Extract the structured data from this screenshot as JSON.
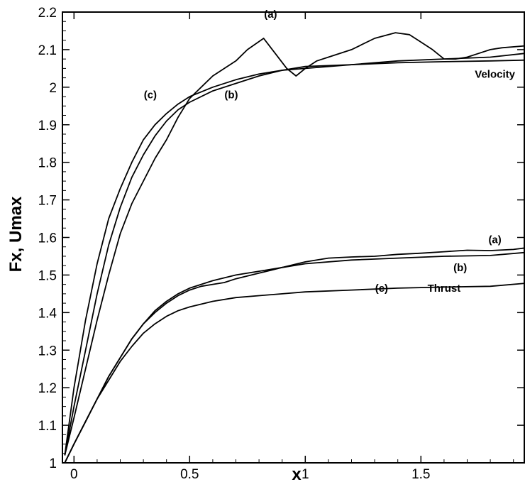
{
  "chart_data": {
    "type": "line",
    "xlabel": "x",
    "ylabel": "Fx, Umax",
    "xlim": [
      -0.05,
      1.95
    ],
    "ylim": [
      1.0,
      2.2
    ],
    "x_ticks": [
      0,
      0.5,
      1,
      1.5
    ],
    "x_tick_labels": [
      "0",
      "0.5",
      "1",
      "1.5"
    ],
    "y_ticks": [
      1.0,
      1.1,
      1.2,
      1.3,
      1.4,
      1.5,
      1.6,
      1.7,
      1.8,
      1.9,
      2.0,
      2.1,
      2.2
    ],
    "y_tick_labels": [
      "1",
      "1.1",
      "1.2",
      "1.3",
      "1.4",
      "1.5",
      "1.6",
      "1.7",
      "1.8",
      "1.9",
      "2",
      "2.1",
      "2.2"
    ],
    "grid": false,
    "series": [
      {
        "group": "Velocity",
        "curve": "(a)",
        "x": [
          -0.04,
          0.0,
          0.05,
          0.1,
          0.15,
          0.2,
          0.25,
          0.3,
          0.35,
          0.4,
          0.45,
          0.5,
          0.55,
          0.6,
          0.65,
          0.7,
          0.75,
          0.82,
          0.87,
          0.92,
          0.96,
          1.0,
          1.05,
          1.1,
          1.2,
          1.3,
          1.39,
          1.45,
          1.5,
          1.55,
          1.6,
          1.65,
          1.7,
          1.75,
          1.8,
          1.85,
          1.95
        ],
        "y": [
          1.02,
          1.12,
          1.25,
          1.38,
          1.5,
          1.61,
          1.69,
          1.75,
          1.81,
          1.86,
          1.92,
          1.97,
          2.0,
          2.03,
          2.05,
          2.07,
          2.1,
          2.13,
          2.09,
          2.05,
          2.03,
          2.05,
          2.07,
          2.08,
          2.1,
          2.13,
          2.145,
          2.14,
          2.12,
          2.1,
          2.075,
          2.075,
          2.08,
          2.09,
          2.1,
          2.105,
          2.11
        ]
      },
      {
        "group": "Velocity",
        "curve": "(b)",
        "x": [
          -0.04,
          0.0,
          0.05,
          0.1,
          0.15,
          0.2,
          0.25,
          0.3,
          0.35,
          0.4,
          0.45,
          0.5,
          0.6,
          0.7,
          0.8,
          0.9,
          1.0,
          1.2,
          1.4,
          1.6,
          1.8,
          1.95
        ],
        "y": [
          1.02,
          1.15,
          1.3,
          1.45,
          1.58,
          1.68,
          1.76,
          1.82,
          1.87,
          1.91,
          1.94,
          1.96,
          1.99,
          2.01,
          2.03,
          2.045,
          2.05,
          2.06,
          2.07,
          2.075,
          2.08,
          2.09
        ]
      },
      {
        "group": "Velocity",
        "curve": "(c)",
        "x": [
          -0.04,
          0.0,
          0.05,
          0.1,
          0.15,
          0.2,
          0.25,
          0.3,
          0.35,
          0.4,
          0.45,
          0.5,
          0.6,
          0.7,
          0.8,
          0.9,
          1.0,
          1.2,
          1.4,
          1.6,
          1.8,
          1.95
        ],
        "y": [
          1.02,
          1.2,
          1.38,
          1.53,
          1.65,
          1.73,
          1.8,
          1.86,
          1.9,
          1.93,
          1.955,
          1.975,
          2.0,
          2.02,
          2.035,
          2.045,
          2.055,
          2.06,
          2.065,
          2.068,
          2.07,
          2.072
        ]
      },
      {
        "group": "Thrust",
        "curve": "(a)",
        "x": [
          -0.04,
          0.0,
          0.05,
          0.1,
          0.15,
          0.2,
          0.25,
          0.3,
          0.35,
          0.4,
          0.45,
          0.5,
          0.55,
          0.6,
          0.65,
          0.7,
          0.8,
          0.9,
          1.0,
          1.1,
          1.2,
          1.3,
          1.4,
          1.5,
          1.6,
          1.7,
          1.8,
          1.9,
          1.95
        ],
        "y": [
          1.0,
          1.05,
          1.11,
          1.17,
          1.23,
          1.28,
          1.33,
          1.37,
          1.4,
          1.425,
          1.445,
          1.46,
          1.47,
          1.475,
          1.48,
          1.49,
          1.505,
          1.52,
          1.535,
          1.545,
          1.548,
          1.55,
          1.555,
          1.558,
          1.562,
          1.566,
          1.565,
          1.568,
          1.572
        ]
      },
      {
        "group": "Thrust",
        "curve": "(b)",
        "x": [
          -0.04,
          0.0,
          0.05,
          0.1,
          0.15,
          0.2,
          0.25,
          0.3,
          0.35,
          0.4,
          0.45,
          0.5,
          0.6,
          0.7,
          0.8,
          0.9,
          1.0,
          1.2,
          1.4,
          1.6,
          1.8,
          1.95
        ],
        "y": [
          1.0,
          1.05,
          1.11,
          1.17,
          1.23,
          1.28,
          1.33,
          1.37,
          1.405,
          1.43,
          1.45,
          1.465,
          1.485,
          1.5,
          1.51,
          1.52,
          1.53,
          1.54,
          1.545,
          1.55,
          1.552,
          1.56
        ]
      },
      {
        "group": "Thrust",
        "curve": "(c)",
        "x": [
          -0.04,
          0.0,
          0.05,
          0.1,
          0.15,
          0.2,
          0.25,
          0.3,
          0.35,
          0.4,
          0.45,
          0.5,
          0.6,
          0.7,
          0.8,
          0.9,
          1.0,
          1.2,
          1.4,
          1.6,
          1.8,
          1.95
        ],
        "y": [
          1.0,
          1.05,
          1.11,
          1.17,
          1.22,
          1.27,
          1.31,
          1.345,
          1.37,
          1.39,
          1.405,
          1.415,
          1.43,
          1.44,
          1.445,
          1.45,
          1.455,
          1.46,
          1.465,
          1.468,
          1.47,
          1.478
        ]
      }
    ],
    "annotations": [
      {
        "text": "(a)",
        "x": 0.85,
        "y": 2.185
      },
      {
        "text": "(c)",
        "x": 0.33,
        "y": 1.97
      },
      {
        "text": "(b)",
        "x": 0.68,
        "y": 1.97
      },
      {
        "text": "Velocity",
        "x": 1.82,
        "y": 2.025
      },
      {
        "text": "(a)",
        "x": 1.82,
        "y": 1.585
      },
      {
        "text": "(b)",
        "x": 1.67,
        "y": 1.51
      },
      {
        "text": "(c)",
        "x": 1.33,
        "y": 1.455
      },
      {
        "text": "Thrust",
        "x": 1.6,
        "y": 1.455
      }
    ]
  }
}
